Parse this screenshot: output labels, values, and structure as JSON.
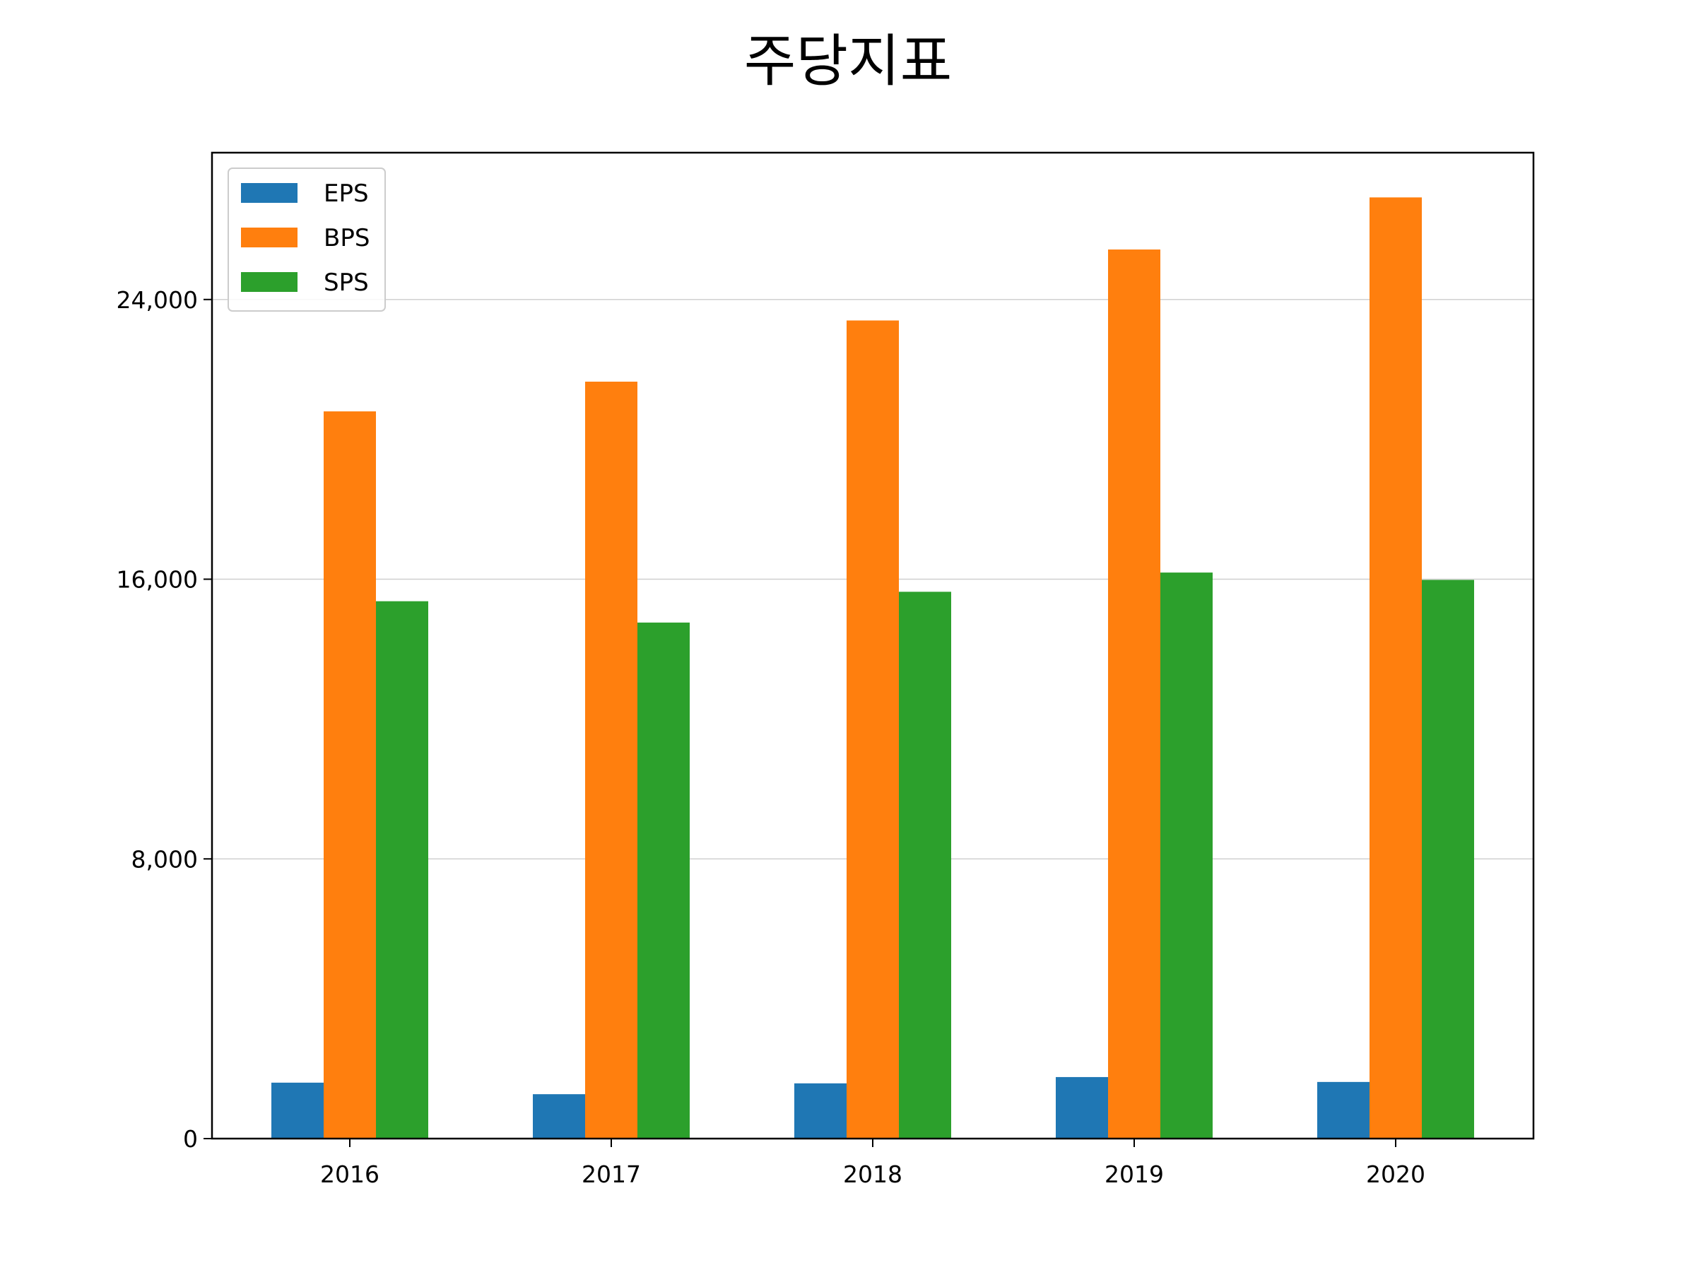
{
  "chart_data": {
    "type": "bar",
    "title": "주당지표",
    "xlabel": "",
    "ylabel": "",
    "categories": [
      "2016",
      "2017",
      "2018",
      "2019",
      "2020"
    ],
    "series": [
      {
        "name": "EPS",
        "color": "#1f77b4",
        "values": [
          1600,
          1270,
          1580,
          1760,
          1620
        ]
      },
      {
        "name": "BPS",
        "color": "#ff7f0e",
        "values": [
          20800,
          21650,
          23400,
          25430,
          26920
        ]
      },
      {
        "name": "SPS",
        "color": "#2ca02c",
        "values": [
          15370,
          14760,
          15640,
          16190,
          15980
        ]
      }
    ],
    "ylim": [
      0,
      28200
    ],
    "yticks": [
      0,
      8000,
      16000,
      24000
    ],
    "ytick_labels": [
      "0",
      "8,000",
      "16,000",
      "24,000"
    ],
    "grid": "y",
    "legend_position": "upper-left"
  }
}
